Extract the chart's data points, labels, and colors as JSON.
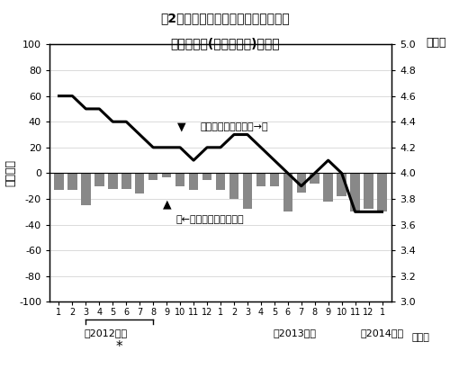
{
  "title_line1": "図2　完全失業者の対前年同月増減と",
  "title_line2": "完全失業率(季節調整値)の推移",
  "ylabel_left": "（万人）",
  "ylabel_right": "（％）",
  "xlabel": "（月）",
  "year_labels": [
    "（2012年）",
    "（2013年）",
    "（2014年）"
  ],
  "months": [
    1,
    2,
    3,
    4,
    5,
    6,
    7,
    8,
    9,
    10,
    11,
    12,
    1,
    2,
    3,
    4,
    5,
    6,
    7,
    8,
    9,
    10,
    11,
    12,
    1
  ],
  "bar_values": [
    -13,
    -13,
    -25,
    -10,
    -12,
    -12,
    -16,
    -5,
    -3,
    -10,
    -13,
    -5,
    -13,
    -20,
    -28,
    -10,
    -10,
    -30,
    -15,
    -8,
    -22,
    -18,
    -30,
    -28,
    -30
  ],
  "line_values_pct": [
    4.6,
    4.6,
    4.5,
    4.5,
    4.4,
    4.4,
    4.3,
    4.2,
    4.2,
    4.2,
    4.1,
    4.2,
    4.2,
    4.3,
    4.3,
    4.2,
    4.1,
    4.0,
    3.9,
    4.0,
    4.1,
    4.0,
    3.7,
    3.7,
    3.7
  ],
  "bar_color": "#888888",
  "line_color": "#000000",
  "ylim_left": [
    -100,
    100
  ],
  "ylim_right": [
    3.0,
    5.0
  ],
  "yticks_left": [
    -100,
    -80,
    -60,
    -40,
    -20,
    0,
    20,
    40,
    60,
    80,
    100
  ],
  "yticks_right": [
    3.0,
    3.2,
    3.4,
    3.6,
    3.8,
    4.0,
    4.2,
    4.4,
    4.6,
    4.8,
    5.0
  ],
  "annotation_line_label": "完全失業率（右目盛→）",
  "annotation_bar_label": "（←左目盛）完全失業者",
  "star_label": "*",
  "background_color": "#ffffff"
}
